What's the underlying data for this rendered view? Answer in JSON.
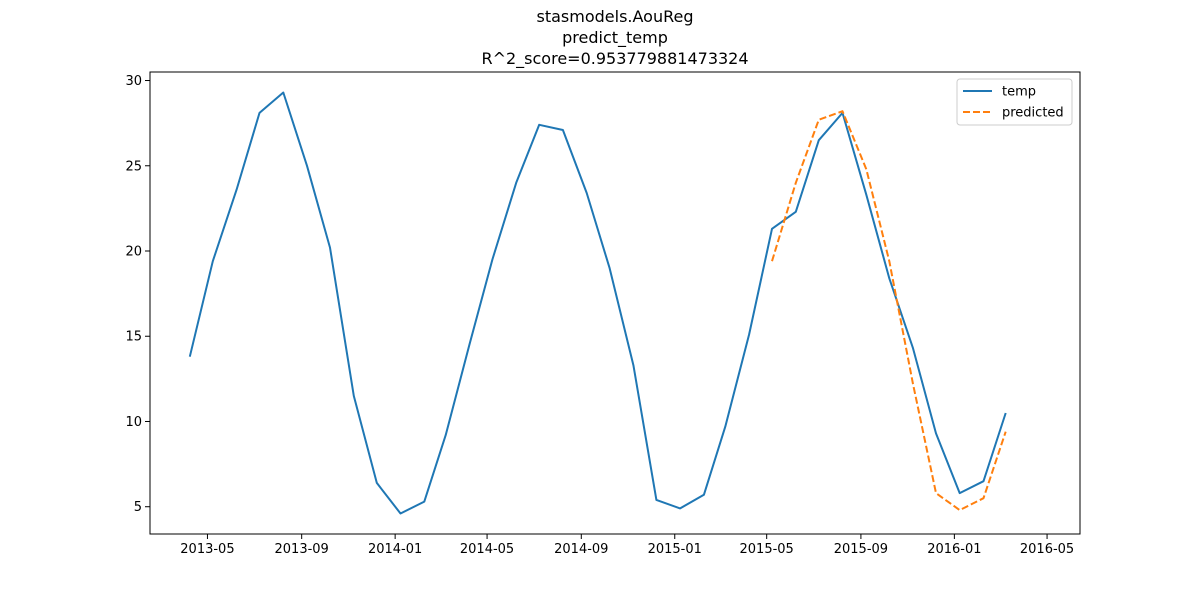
{
  "chart_data": {
    "type": "line",
    "title_lines": [
      "stasmodels.AouReg",
      "predict_temp",
      "R^2_score=0.953779881473324"
    ],
    "xlabel": "",
    "ylabel": "",
    "x_axis": {
      "type": "date",
      "range": [
        "2013-02-15",
        "2016-06-13"
      ],
      "ticks": [
        "2013-05-01",
        "2013-09-01",
        "2014-01-01",
        "2014-05-01",
        "2014-09-01",
        "2015-01-01",
        "2015-05-01",
        "2015-09-01",
        "2016-01-01",
        "2016-05-01"
      ],
      "tick_labels": [
        "2013-05",
        "2013-09",
        "2014-01",
        "2014-05",
        "2014-09",
        "2015-01",
        "2015-05",
        "2015-09",
        "2016-01",
        "2016-05"
      ]
    },
    "y_axis": {
      "range": [
        3.4,
        30.5
      ],
      "ticks": [
        5,
        10,
        15,
        20,
        25,
        30
      ],
      "tick_labels": [
        "5",
        "10",
        "15",
        "20",
        "25",
        "30"
      ]
    },
    "legend": {
      "position": "upper right",
      "entries": [
        "temp",
        "predicted"
      ]
    },
    "grid": false,
    "series": [
      {
        "name": "temp",
        "color": "#1f77b4",
        "style": "solid",
        "x": [
          "2013-04-08",
          "2013-05-08",
          "2013-06-08",
          "2013-07-08",
          "2013-08-08",
          "2013-09-08",
          "2013-10-08",
          "2013-11-08",
          "2013-12-08",
          "2014-01-08",
          "2014-02-08",
          "2014-03-08",
          "2014-04-08",
          "2014-05-08",
          "2014-06-08",
          "2014-07-08",
          "2014-08-08",
          "2014-09-08",
          "2014-10-08",
          "2014-11-08",
          "2014-12-08",
          "2015-01-08",
          "2015-02-08",
          "2015-03-08",
          "2015-04-08",
          "2015-05-08",
          "2015-06-08",
          "2015-07-08",
          "2015-08-08",
          "2015-09-08",
          "2015-10-08",
          "2015-11-08",
          "2015-12-08",
          "2016-01-08",
          "2016-02-08",
          "2016-03-08"
        ],
        "y": [
          13.8,
          19.4,
          23.6,
          28.1,
          29.3,
          25.0,
          20.2,
          11.5,
          6.4,
          4.6,
          5.3,
          9.2,
          14.5,
          19.5,
          24.0,
          27.4,
          27.1,
          23.4,
          19.0,
          13.3,
          5.4,
          4.9,
          5.7,
          9.7,
          15.1,
          21.3,
          22.3,
          26.5,
          28.1,
          23.3,
          18.4,
          14.3,
          9.3,
          5.8,
          6.5,
          10.5
        ]
      },
      {
        "name": "predicted",
        "color": "#ff7f0e",
        "style": "dashed",
        "x": [
          "2015-05-08",
          "2015-06-08",
          "2015-07-08",
          "2015-08-08",
          "2015-09-08",
          "2015-10-08",
          "2015-11-08",
          "2015-12-08",
          "2016-01-08",
          "2016-02-08",
          "2016-03-08"
        ],
        "y": [
          19.4,
          24.0,
          27.7,
          28.2,
          24.8,
          19.4,
          12.2,
          5.8,
          4.8,
          5.5,
          9.4
        ]
      }
    ]
  }
}
